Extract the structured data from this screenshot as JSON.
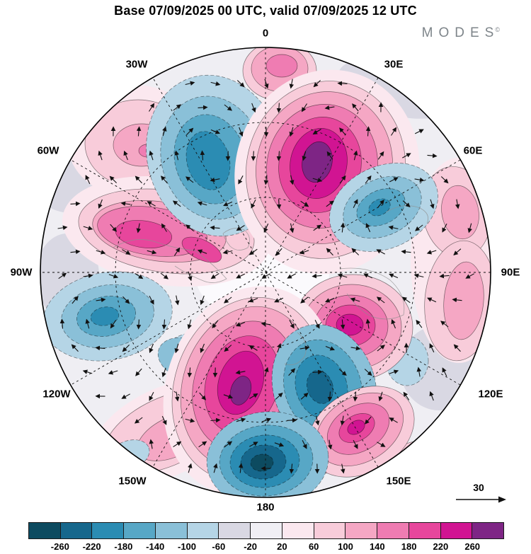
{
  "header": {
    "title": "Base 07/09/2025 00 UTC, valid 07/09/2025 12 UTC",
    "logo": "MODES",
    "logo_mark": "©"
  },
  "map": {
    "lon_labels": [
      "0",
      "30E",
      "60E",
      "90E",
      "120E",
      "150E",
      "180",
      "150W",
      "120W",
      "90W",
      "60W",
      "30W"
    ],
    "reference_vector_label": "30",
    "blobs": [
      [
        560,
        125,
        85,
        38,
        15,
        6
      ],
      [
        118,
        253,
        72,
        48,
        -10,
        6
      ],
      [
        620,
        520,
        55,
        60,
        0,
        6
      ],
      [
        95,
        390,
        45,
        60,
        0,
        6
      ],
      [
        370,
        385,
        95,
        70,
        0,
        "#fbfafd"
      ],
      [
        190,
        200,
        95,
        80,
        0,
        8
      ],
      [
        195,
        203,
        75,
        62,
        0,
        9
      ],
      [
        200,
        205,
        40,
        30,
        0,
        10
      ],
      [
        208,
        213,
        12,
        9,
        0,
        11
      ],
      [
        235,
        327,
        148,
        76,
        8,
        8
      ],
      [
        235,
        327,
        125,
        58,
        8,
        9
      ],
      [
        225,
        327,
        95,
        42,
        8,
        10
      ],
      [
        215,
        327,
        78,
        34,
        8,
        11
      ],
      [
        203,
        331,
        40,
        19,
        8,
        12
      ],
      [
        285,
        353,
        30,
        14,
        25,
        12
      ],
      [
        235,
        610,
        115,
        62,
        -25,
        8
      ],
      [
        235,
        610,
        95,
        48,
        -25,
        9
      ],
      [
        245,
        617,
        55,
        28,
        -25,
        10
      ],
      [
        292,
        640,
        32,
        16,
        -35,
        11
      ],
      [
        395,
        100,
        52,
        42,
        0,
        9
      ],
      [
        395,
        97,
        40,
        32,
        0,
        10
      ],
      [
        398,
        93,
        22,
        16,
        0,
        11
      ],
      [
        648,
        368,
        68,
        145,
        0,
        8
      ],
      [
        645,
        300,
        48,
        65,
        -10,
        9
      ],
      [
        650,
        300,
        26,
        38,
        -10,
        10
      ],
      [
        650,
        425,
        50,
        85,
        5,
        9
      ],
      [
        655,
        425,
        28,
        55,
        5,
        10
      ],
      [
        585,
        655,
        45,
        30,
        -20,
        9
      ],
      [
        520,
        155,
        40,
        22,
        25,
        9
      ],
      [
        450,
        640,
        45,
        28,
        10,
        10
      ],
      [
        303,
        220,
        95,
        115,
        -15,
        5
      ],
      [
        300,
        223,
        72,
        88,
        -15,
        4
      ],
      [
        297,
        225,
        50,
        64,
        -15,
        3
      ],
      [
        294,
        227,
        30,
        42,
        -15,
        2
      ],
      [
        462,
        243,
        130,
        145,
        12,
        8
      ],
      [
        460,
        240,
        112,
        126,
        12,
        9
      ],
      [
        458,
        237,
        96,
        108,
        12,
        10
      ],
      [
        455,
        235,
        78,
        88,
        12,
        11
      ],
      [
        452,
        233,
        58,
        68,
        12,
        12
      ],
      [
        450,
        231,
        40,
        50,
        12,
        13
      ],
      [
        448,
        229,
        21,
        29,
        12,
        14
      ],
      [
        542,
        293,
        80,
        58,
        -25,
        5
      ],
      [
        540,
        293,
        58,
        40,
        -25,
        4
      ],
      [
        538,
        293,
        36,
        24,
        -25,
        3
      ],
      [
        536,
        293,
        16,
        11,
        -25,
        2
      ],
      [
        152,
        447,
        92,
        62,
        -10,
        5
      ],
      [
        152,
        447,
        66,
        44,
        -10,
        4
      ],
      [
        150,
        447,
        42,
        28,
        -10,
        3
      ],
      [
        148,
        447,
        20,
        13,
        -10,
        2
      ],
      [
        300,
        510,
        70,
        40,
        10,
        5
      ],
      [
        262,
        507,
        40,
        28,
        20,
        4
      ],
      [
        182,
        643,
        30,
        20,
        -20,
        5
      ],
      [
        575,
        510,
        30,
        35,
        0,
        5
      ],
      [
        498,
        463,
        85,
        75,
        0,
        9
      ],
      [
        497,
        462,
        70,
        60,
        0,
        10
      ],
      [
        496,
        461,
        52,
        44,
        0,
        11
      ],
      [
        495,
        460,
        35,
        29,
        0,
        12
      ],
      [
        494,
        459,
        19,
        15,
        0,
        13
      ],
      [
        352,
        552,
        118,
        150,
        18,
        8
      ],
      [
        350,
        550,
        104,
        132,
        18,
        9
      ],
      [
        348,
        547,
        90,
        116,
        18,
        10
      ],
      [
        345,
        545,
        71,
        93,
        18,
        11
      ],
      [
        342,
        543,
        51,
        70,
        18,
        12
      ],
      [
        340,
        541,
        31,
        46,
        18,
        13
      ],
      [
        340,
        552,
        14,
        21,
        18,
        14
      ],
      [
        458,
        547,
        72,
        90,
        -18,
        4
      ],
      [
        456,
        547,
        54,
        68,
        -18,
        3
      ],
      [
        454,
        547,
        36,
        46,
        -18,
        2
      ],
      [
        452,
        547,
        18,
        24,
        -18,
        1
      ],
      [
        510,
        610,
        80,
        58,
        -30,
        9
      ],
      [
        508,
        607,
        66,
        46,
        -30,
        10
      ],
      [
        506,
        606,
        47,
        32,
        -30,
        11
      ],
      [
        504,
        605,
        27,
        18,
        -30,
        12
      ],
      [
        503,
        604,
        13,
        9,
        -30,
        13
      ],
      [
        378,
        650,
        86,
        68,
        -5,
        4
      ],
      [
        376,
        651,
        66,
        50,
        -5,
        3
      ],
      [
        374,
        652,
        49,
        37,
        -5,
        2
      ],
      [
        372,
        653,
        32,
        24,
        -5,
        1
      ],
      [
        370,
        654,
        16,
        12,
        -5,
        0
      ]
    ]
  },
  "colorbar": {
    "tick_labels": [
      "-260",
      "-220",
      "-180",
      "-140",
      "-100",
      "-60",
      "-20",
      "20",
      "60",
      "100",
      "140",
      "180",
      "220",
      "260"
    ],
    "colors": [
      "#0d4b60",
      "#16678c",
      "#2b8cb3",
      "#57a7c6",
      "#8ac0d8",
      "#b5d5e6",
      "#d9d8e3",
      "#f0eff4",
      "#fbe8ef",
      "#f8ccda",
      "#f5a7c4",
      "#ef7cb2",
      "#e7469c",
      "#d11492",
      "#7e2585"
    ]
  },
  "chart_data": {
    "type": "heatmap",
    "title": "Base 07/09/2025 00 UTC, valid 07/09/2025 12 UTC",
    "description": "North-polar stereographic filled-contour anomaly field with wind vector arrows (MODES product), longitude labels around the ring, reference vector 30, color scale -260 to 260 step 40",
    "projection": "north-polar stereographic",
    "longitude_ring_labels": [
      "0",
      "30E",
      "60E",
      "90E",
      "120E",
      "150E",
      "180",
      "150W",
      "120W",
      "90W",
      "60W",
      "30W"
    ],
    "contour_levels": [
      -260,
      -220,
      -180,
      -140,
      -100,
      -60,
      -20,
      20,
      60,
      100,
      140,
      180,
      220,
      260
    ],
    "colorbar_colors": [
      "#0d4b60",
      "#16678c",
      "#2b8cb3",
      "#57a7c6",
      "#8ac0d8",
      "#b5d5e6",
      "#d9d8e3",
      "#f0eff4",
      "#fbe8ef",
      "#f8ccda",
      "#f5a7c4",
      "#ef7cb2",
      "#e7469c",
      "#d11492",
      "#7e2585"
    ],
    "reference_vector_magnitude": 30,
    "anomaly_centers": [
      {
        "sign": "negative",
        "peak_band": "-180 to -140",
        "approx_position": "near 0-15W, 60-75N (top center)"
      },
      {
        "sign": "positive",
        "peak_band": "above 260 (purple core)",
        "approx_position": "30-50E, 55-70N (top right)"
      },
      {
        "sign": "negative",
        "peak_band": "-140 to -100",
        "approx_position": "60-75E, 45-55N (right)"
      },
      {
        "sign": "positive",
        "peak_band": "140 to 180",
        "approx_position": "70-80W, ~45N (left band)"
      },
      {
        "sign": "negative",
        "peak_band": "-140 to -100",
        "approx_position": "100-110W, 35-40N (left)"
      },
      {
        "sign": "positive",
        "peak_band": "above 260 (purple core)",
        "approx_position": "170E-180, 30-45N (bottom center)"
      },
      {
        "sign": "negative",
        "peak_band": "-260 to -220",
        "approx_position": "near 180, 20-30N (bottom, dark core)"
      },
      {
        "sign": "negative",
        "peak_band": "-220 to -180",
        "approx_position": "~150E, 30-40N"
      },
      {
        "sign": "positive",
        "peak_band": "180 to 220",
        "approx_position": "~135E, 45-50N"
      },
      {
        "sign": "positive",
        "peak_band": "140 to 180",
        "approx_position": "~155E, 25-30N (bottom right)"
      }
    ]
  }
}
